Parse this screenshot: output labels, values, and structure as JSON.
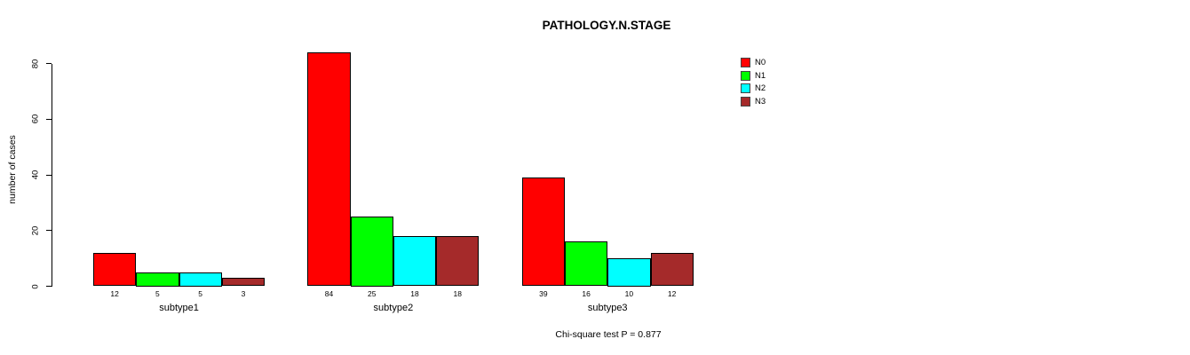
{
  "chart_data": {
    "type": "bar",
    "title": "PATHOLOGY.N.STAGE",
    "ylabel": "number of cases",
    "ylim": [
      0,
      80
    ],
    "yticks": [
      0,
      20,
      40,
      60,
      80
    ],
    "categories": [
      "subtype1",
      "subtype2",
      "subtype3"
    ],
    "series": [
      {
        "name": "N0",
        "color": "#FF0000",
        "values": [
          12,
          84,
          39
        ]
      },
      {
        "name": "N1",
        "color": "#00FF00",
        "values": [
          5,
          25,
          16
        ]
      },
      {
        "name": "N2",
        "color": "#00FFFF",
        "values": [
          5,
          18,
          10
        ]
      },
      {
        "name": "N3",
        "color": "#A52A2A",
        "values": [
          3,
          18,
          12
        ]
      }
    ],
    "legend": {
      "position": "top-right",
      "entries": [
        "N0",
        "N1",
        "N2",
        "N3"
      ]
    },
    "bar_value_labels_shown": true,
    "grid": false,
    "annotation": "Chi-square test P = 0.877"
  }
}
